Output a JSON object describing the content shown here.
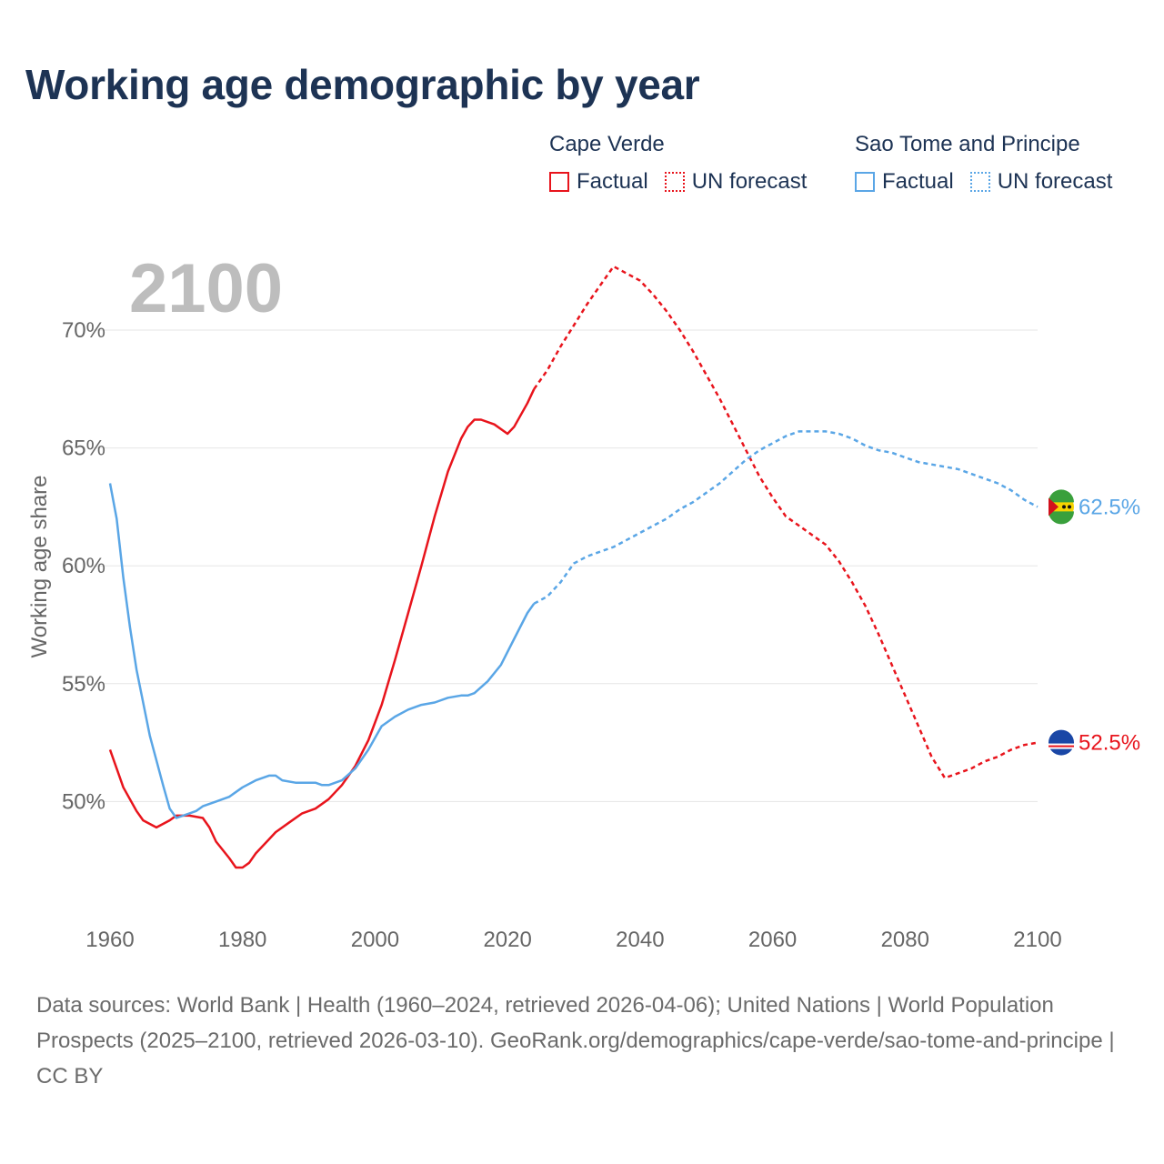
{
  "title": "Working age demographic by year",
  "legend": {
    "groups": [
      {
        "name": "Cape Verde",
        "factual": "Factual",
        "forecast": "UN forecast",
        "color": "#e8141c"
      },
      {
        "name": "Sao Tome and Principe",
        "factual": "Factual",
        "forecast": "UN forecast",
        "color": "#5aa6e6"
      }
    ]
  },
  "year_label": "2100",
  "source_text": "Data sources: World Bank | Health (1960–2024, retrieved 2026-04-06); United Nations | World Population Prospects (2025–2100, retrieved 2026-03-10). GeoRank.org/demographics/cape-verde/sao-tome-and-principe | CC BY",
  "chart_data": {
    "type": "line",
    "title": "Working age demographic by year",
    "xlabel": "",
    "ylabel": "Working age share",
    "xlim": [
      1960,
      2100
    ],
    "ylim": [
      45,
      72.7
    ],
    "xticks": [
      1960,
      1980,
      2000,
      2020,
      2040,
      2060,
      2080,
      2100
    ],
    "xtick_labels": [
      "1960",
      "1980",
      "2000",
      "2020",
      "2040",
      "2060",
      "2080",
      "2100"
    ],
    "yticks": [
      50,
      55,
      60,
      65,
      70
    ],
    "ytick_labels": [
      "50%",
      "55%",
      "60%",
      "65%",
      "70%"
    ],
    "grid": true,
    "factual_end_year": 2024,
    "series": [
      {
        "name": "Cape Verde",
        "color": "#e8141c",
        "end_label": "52.5%",
        "points": [
          [
            1960,
            52.2
          ],
          [
            1962,
            50.6
          ],
          [
            1964,
            49.6
          ],
          [
            1965,
            49.2
          ],
          [
            1967,
            48.9
          ],
          [
            1969,
            49.2
          ],
          [
            1970,
            49.4
          ],
          [
            1972,
            49.4
          ],
          [
            1974,
            49.3
          ],
          [
            1975,
            48.9
          ],
          [
            1976,
            48.3
          ],
          [
            1978,
            47.6
          ],
          [
            1979,
            47.2
          ],
          [
            1980,
            47.2
          ],
          [
            1981,
            47.4
          ],
          [
            1982,
            47.8
          ],
          [
            1984,
            48.4
          ],
          [
            1985,
            48.7
          ],
          [
            1987,
            49.1
          ],
          [
            1989,
            49.5
          ],
          [
            1991,
            49.7
          ],
          [
            1993,
            50.1
          ],
          [
            1995,
            50.7
          ],
          [
            1997,
            51.5
          ],
          [
            1999,
            52.6
          ],
          [
            2001,
            54.1
          ],
          [
            2003,
            56.0
          ],
          [
            2005,
            58.0
          ],
          [
            2007,
            60.0
          ],
          [
            2009,
            62.1
          ],
          [
            2011,
            64.0
          ],
          [
            2013,
            65.4
          ],
          [
            2014,
            65.9
          ],
          [
            2015,
            66.2
          ],
          [
            2016,
            66.2
          ],
          [
            2018,
            66.0
          ],
          [
            2020,
            65.6
          ],
          [
            2021,
            65.9
          ],
          [
            2023,
            66.9
          ],
          [
            2024,
            67.5
          ],
          [
            2026,
            68.3
          ],
          [
            2028,
            69.3
          ],
          [
            2030,
            70.2
          ],
          [
            2032,
            71.1
          ],
          [
            2034,
            71.9
          ],
          [
            2036,
            72.7
          ],
          [
            2038,
            72.4
          ],
          [
            2040,
            72.1
          ],
          [
            2042,
            71.5
          ],
          [
            2044,
            70.8
          ],
          [
            2046,
            70.0
          ],
          [
            2048,
            69.1
          ],
          [
            2050,
            68.1
          ],
          [
            2052,
            67.1
          ],
          [
            2054,
            66.0
          ],
          [
            2056,
            64.9
          ],
          [
            2058,
            63.8
          ],
          [
            2060,
            62.9
          ],
          [
            2062,
            62.1
          ],
          [
            2064,
            61.7
          ],
          [
            2066,
            61.3
          ],
          [
            2068,
            60.9
          ],
          [
            2070,
            60.2
          ],
          [
            2072,
            59.3
          ],
          [
            2074,
            58.3
          ],
          [
            2076,
            57.1
          ],
          [
            2078,
            55.8
          ],
          [
            2080,
            54.5
          ],
          [
            2082,
            53.2
          ],
          [
            2084,
            51.9
          ],
          [
            2086,
            51.0
          ],
          [
            2088,
            51.2
          ],
          [
            2090,
            51.4
          ],
          [
            2092,
            51.7
          ],
          [
            2094,
            51.9
          ],
          [
            2096,
            52.2
          ],
          [
            2098,
            52.4
          ],
          [
            2100,
            52.5
          ]
        ]
      },
      {
        "name": "Sao Tome and Principe",
        "color": "#5aa6e6",
        "end_label": "62.5%",
        "points": [
          [
            1960,
            63.5
          ],
          [
            1961,
            62.0
          ],
          [
            1962,
            59.5
          ],
          [
            1963,
            57.4
          ],
          [
            1964,
            55.6
          ],
          [
            1966,
            52.8
          ],
          [
            1968,
            50.7
          ],
          [
            1969,
            49.7
          ],
          [
            1970,
            49.3
          ],
          [
            1972,
            49.5
          ],
          [
            1973,
            49.6
          ],
          [
            1974,
            49.8
          ],
          [
            1976,
            50.0
          ],
          [
            1978,
            50.2
          ],
          [
            1980,
            50.6
          ],
          [
            1982,
            50.9
          ],
          [
            1984,
            51.1
          ],
          [
            1985,
            51.1
          ],
          [
            1986,
            50.9
          ],
          [
            1988,
            50.8
          ],
          [
            1991,
            50.8
          ],
          [
            1992,
            50.7
          ],
          [
            1993,
            50.7
          ],
          [
            1995,
            50.9
          ],
          [
            1997,
            51.4
          ],
          [
            1999,
            52.2
          ],
          [
            2001,
            53.2
          ],
          [
            2003,
            53.6
          ],
          [
            2005,
            53.9
          ],
          [
            2007,
            54.1
          ],
          [
            2009,
            54.2
          ],
          [
            2011,
            54.4
          ],
          [
            2013,
            54.5
          ],
          [
            2014,
            54.5
          ],
          [
            2015,
            54.6
          ],
          [
            2017,
            55.1
          ],
          [
            2019,
            55.8
          ],
          [
            2021,
            56.9
          ],
          [
            2023,
            58.0
          ],
          [
            2024,
            58.4
          ],
          [
            2026,
            58.7
          ],
          [
            2028,
            59.3
          ],
          [
            2030,
            60.1
          ],
          [
            2032,
            60.4
          ],
          [
            2034,
            60.6
          ],
          [
            2036,
            60.8
          ],
          [
            2038,
            61.1
          ],
          [
            2040,
            61.4
          ],
          [
            2042,
            61.7
          ],
          [
            2044,
            62.0
          ],
          [
            2046,
            62.4
          ],
          [
            2048,
            62.7
          ],
          [
            2050,
            63.1
          ],
          [
            2052,
            63.5
          ],
          [
            2054,
            64.0
          ],
          [
            2056,
            64.5
          ],
          [
            2058,
            64.9
          ],
          [
            2060,
            65.2
          ],
          [
            2062,
            65.5
          ],
          [
            2064,
            65.7
          ],
          [
            2066,
            65.7
          ],
          [
            2068,
            65.7
          ],
          [
            2070,
            65.6
          ],
          [
            2072,
            65.4
          ],
          [
            2074,
            65.1
          ],
          [
            2076,
            64.9
          ],
          [
            2078,
            64.8
          ],
          [
            2080,
            64.6
          ],
          [
            2082,
            64.4
          ],
          [
            2084,
            64.3
          ],
          [
            2086,
            64.2
          ],
          [
            2088,
            64.1
          ],
          [
            2090,
            63.9
          ],
          [
            2092,
            63.7
          ],
          [
            2094,
            63.5
          ],
          [
            2096,
            63.2
          ],
          [
            2098,
            62.8
          ],
          [
            2100,
            62.5
          ]
        ]
      }
    ]
  }
}
